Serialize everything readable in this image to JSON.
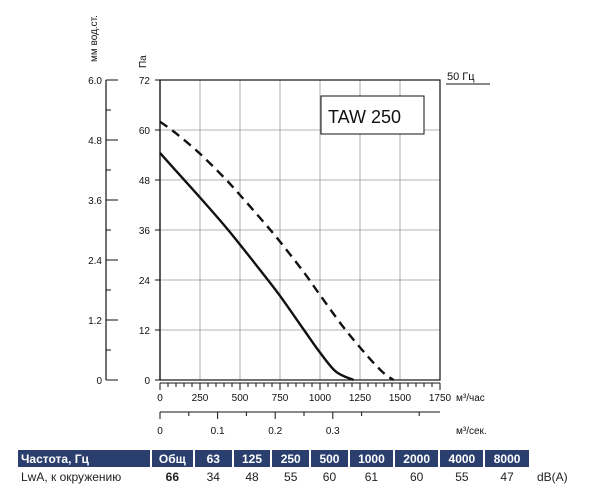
{
  "chart_data": {
    "type": "line",
    "model_label": "TAW 250",
    "frequency_label": "50 Гц",
    "left_axis_label": "мм вод.ст.",
    "left_axis_ticks": [
      "6.0",
      "4.8",
      "3.6",
      "2.4",
      "1.2",
      "0"
    ],
    "pa_axis_label": "Па",
    "pa_axis_ticks": [
      72,
      60,
      48,
      36,
      24,
      12,
      0
    ],
    "ylim": [
      0,
      72
    ],
    "x_hour_ticks": [
      0,
      250,
      500,
      750,
      1000,
      1250,
      1500,
      1750
    ],
    "x_hour_label": "м³/час",
    "xlim": [
      0,
      1750
    ],
    "x_sec_ticks": [
      "0",
      "0.1",
      "0.2",
      "0.3"
    ],
    "x_sec_label": "м³/сек.",
    "grid": true,
    "series": [
      {
        "style": "solid",
        "x": [
          0,
          100,
          250,
          400,
          500,
          650,
          750,
          900,
          1000,
          1100,
          1210
        ],
        "y": [
          54.5,
          50.2,
          43.8,
          37.2,
          32.5,
          25.2,
          20.2,
          12.0,
          6.6,
          2.0,
          0
        ]
      },
      {
        "style": "dashed",
        "x": [
          0,
          100,
          250,
          400,
          500,
          650,
          750,
          900,
          1000,
          1150,
          1300,
          1400,
          1460
        ],
        "y": [
          62.0,
          59.2,
          54.3,
          48.6,
          44.4,
          37.8,
          33.2,
          25.8,
          20.4,
          12.5,
          5.6,
          1.6,
          0
        ]
      }
    ]
  },
  "table": {
    "header": [
      "Частота, Гц",
      "Общ",
      "63",
      "125",
      "250",
      "500",
      "1000",
      "2000",
      "4000",
      "8000",
      ""
    ],
    "row": [
      "LwA, к окружению",
      "66",
      "34",
      "48",
      "55",
      "60",
      "61",
      "60",
      "55",
      "47",
      "dB(A)"
    ]
  }
}
